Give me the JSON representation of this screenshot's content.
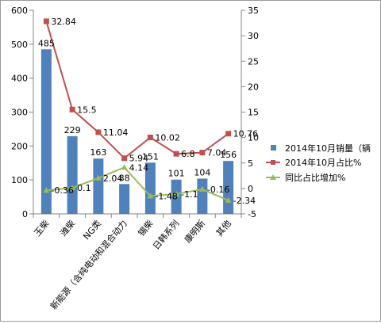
{
  "chart_data": {
    "type": "bar",
    "categories": [
      "玉柴",
      "潍柴",
      "NG类",
      "新能源（含纯电动和混合动力",
      "锡柴",
      "日韩系列",
      "康明斯",
      "其他"
    ],
    "series": [
      {
        "name": "2014年10月销量（辆",
        "type": "bar",
        "axis": "left",
        "color": "#4f81bd",
        "values": [
          485,
          229,
          163,
          88,
          151,
          101,
          104,
          156
        ],
        "labels": [
          "485",
          "229",
          "163",
          "88",
          "151",
          "101",
          "104",
          "156"
        ]
      },
      {
        "name": "2014年10月占比%",
        "type": "line",
        "axis": "right",
        "color": "#c0504d",
        "marker": "square",
        "values": [
          32.84,
          15.5,
          11.04,
          5.94,
          10.02,
          6.8,
          7.04,
          10.76
        ],
        "labels": [
          "32.84",
          "15.5",
          "11.04",
          "5.94",
          "10.02",
          "6.8",
          "7.04",
          "10.76"
        ]
      },
      {
        "name": "同比占比增加%",
        "type": "line",
        "axis": "right",
        "color": "#9bbb59",
        "marker": "triangle",
        "values": [
          -0.36,
          0.1,
          2.04,
          4.14,
          -1.48,
          -1.1,
          -0.16,
          -2.34
        ],
        "labels": [
          "-0.36",
          "0.1",
          "2.04",
          "4.14",
          "-1.48",
          "-1.1",
          "-0.16",
          "-2.34"
        ]
      }
    ],
    "y_left": {
      "ylim": [
        0,
        600
      ],
      "ticks": [
        "0",
        "100",
        "200",
        "300",
        "400",
        "500",
        "600"
      ]
    },
    "y_right": {
      "ylim": [
        -5,
        35
      ],
      "ticks": [
        "-5",
        "0",
        "5",
        "10",
        "15",
        "20",
        "25",
        "30",
        "35"
      ]
    },
    "grid": false,
    "legend_position": "right"
  }
}
